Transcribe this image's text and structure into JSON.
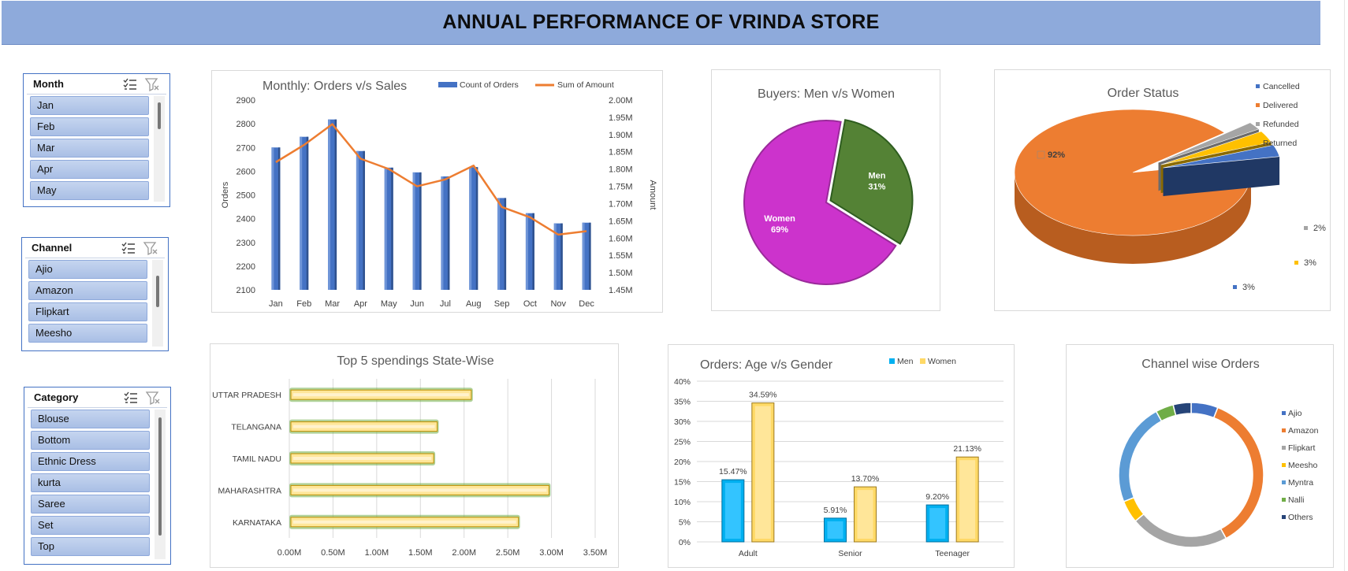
{
  "title": "ANNUAL PERFORMANCE OF VRINDA STORE",
  "slicers": {
    "month": {
      "title": "Month",
      "items": [
        "Jan",
        "Feb",
        "Mar",
        "Apr",
        "May"
      ]
    },
    "channel": {
      "title": "Channel",
      "items": [
        "Ajio",
        "Amazon",
        "Flipkart",
        "Meesho"
      ]
    },
    "category": {
      "title": "Category",
      "items": [
        "Blouse",
        "Bottom",
        "Ethnic Dress",
        "kurta",
        "Saree",
        "Set",
        "Top"
      ]
    }
  },
  "colors": {
    "header": "#8eaadb",
    "slicer_item": "#b4c7e7",
    "orange": "#ed7d31",
    "blue": "#4472c4"
  },
  "chart_data": [
    {
      "id": "monthly",
      "type": "bar",
      "title": "Monthly: Orders v/s Sales",
      "categories": [
        "Jan",
        "Feb",
        "Mar",
        "Apr",
        "May",
        "Jun",
        "Jul",
        "Aug",
        "Sep",
        "Oct",
        "Nov",
        "Dec"
      ],
      "series": [
        {
          "name": "Count of Orders",
          "type": "bar",
          "axis": "left",
          "color": "#4472c4",
          "values": [
            2700,
            2745,
            2818,
            2685,
            2615,
            2595,
            2578,
            2617,
            2487,
            2423,
            2380,
            2383
          ]
        },
        {
          "name": "Sum of Amount",
          "type": "line",
          "axis": "right",
          "color": "#ed7d31",
          "values": [
            1.82,
            1.87,
            1.93,
            1.83,
            1.8,
            1.75,
            1.77,
            1.81,
            1.69,
            1.66,
            1.61,
            1.62
          ]
        }
      ],
      "ylabel": "Orders",
      "y2label": "Amount",
      "yticks": [
        "2900",
        "2800",
        "2700",
        "2600",
        "2500",
        "2400",
        "2300",
        "2200",
        "2100"
      ],
      "y2ticks": [
        "2.00M",
        "1.95M",
        "1.90M",
        "1.85M",
        "1.80M",
        "1.75M",
        "1.70M",
        "1.65M",
        "1.60M",
        "1.55M",
        "1.50M",
        "1.45M"
      ],
      "ylim": [
        2100,
        2900
      ],
      "y2lim": [
        1.45,
        2.0
      ],
      "legend": "top"
    },
    {
      "id": "buyers",
      "type": "pie",
      "title": "Buyers: Men v/s Women",
      "labels": [
        "Men",
        "Women"
      ],
      "values": [
        31,
        69
      ],
      "value_labels": [
        "31%",
        "69%"
      ],
      "colors": [
        "#548235",
        "#cc33cc"
      ]
    },
    {
      "id": "status",
      "type": "pie",
      "title": "Order Status",
      "labels": [
        "Cancelled",
        "Delivered",
        "Refunded",
        "Returned"
      ],
      "values": [
        3,
        92,
        2,
        3
      ],
      "value_labels": [
        "3%",
        "92%",
        "2%",
        "3%"
      ],
      "colors": [
        "#4472c4",
        "#ed7d31",
        "#a5a5a5",
        "#ffc000"
      ],
      "legend": "right"
    },
    {
      "id": "states",
      "type": "bar",
      "orientation": "horizontal",
      "title": "Top 5 spendings State-Wise",
      "categories": [
        "UTTAR PRADESH",
        "TELANGANA",
        "TAMIL NADU",
        "MAHARASHTRA",
        "KARNATAKA"
      ],
      "values": [
        2.1,
        1.71,
        1.67,
        2.99,
        2.64
      ],
      "xticks": [
        "0.00M",
        "0.50M",
        "1.00M",
        "1.50M",
        "2.00M",
        "2.50M",
        "3.00M",
        "3.50M"
      ],
      "xlim": [
        0,
        3.5
      ],
      "color": "#ffe699"
    },
    {
      "id": "age",
      "type": "bar",
      "title": "Orders: Age v/s Gender",
      "categories": [
        "Adult",
        "Senior",
        "Teenager"
      ],
      "series": [
        {
          "name": "Men",
          "color": "#00b0f0",
          "values": [
            15.47,
            5.91,
            9.2
          ],
          "labels": [
            "15.47%",
            "5.91%",
            "9.20%"
          ]
        },
        {
          "name": "Women",
          "color": "#ffd966",
          "values": [
            34.59,
            13.7,
            21.13
          ],
          "labels": [
            "34.59%",
            "13.70%",
            "21.13%"
          ]
        }
      ],
      "yticks": [
        "40%",
        "35%",
        "30%",
        "25%",
        "20%",
        "15%",
        "10%",
        "5%",
        "0%"
      ],
      "ylim": [
        0,
        40
      ],
      "legend": "top"
    },
    {
      "id": "channel",
      "type": "pie",
      "style": "doughnut",
      "title": "Channel wise Orders",
      "labels": [
        "Ajio",
        "Amazon",
        "Flipkart",
        "Meesho",
        "Myntra",
        "Nalli",
        "Others"
      ],
      "values": [
        6,
        36,
        22,
        5,
        23,
        4,
        4
      ],
      "colors": [
        "#4472c4",
        "#ed7d31",
        "#a5a5a5",
        "#ffc000",
        "#5b9bd5",
        "#70ad47",
        "#264478"
      ],
      "legend": "right"
    }
  ]
}
